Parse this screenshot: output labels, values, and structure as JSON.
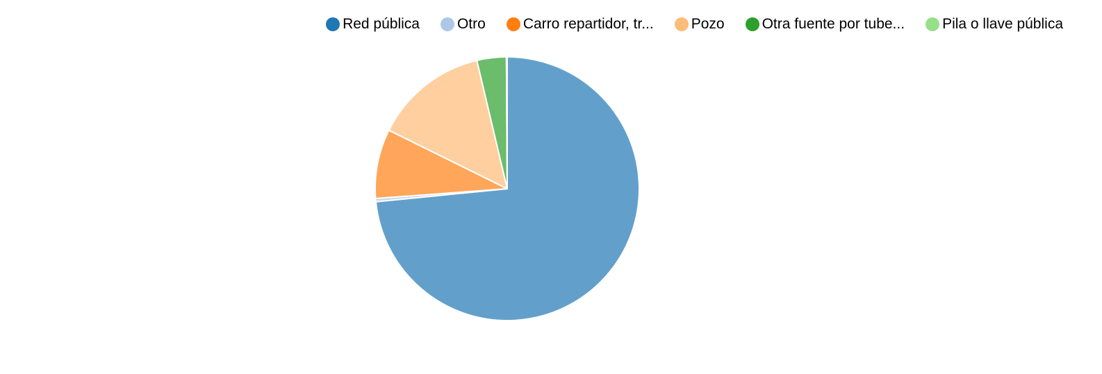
{
  "chart_data": {
    "type": "pie",
    "legend_position": "top-right",
    "slices": [
      {
        "label": "Red pública",
        "value": 73.5,
        "color": "#1f77b4",
        "fill": "#62a0cb"
      },
      {
        "label": "Otro",
        "value": 0.4,
        "color": "#aec7e8",
        "fill": "#c6d7ef"
      },
      {
        "label": "Carro repartidor, tr...",
        "value": 8.5,
        "color": "#ff7f0e",
        "fill": "#ffa65a"
      },
      {
        "label": "Pozo",
        "value": 14.0,
        "color": "#ffbb78",
        "fill": "#ffcfa0"
      },
      {
        "label": "Otra fuente por tube...",
        "value": 3.6,
        "color": "#2ca02c",
        "fill": "#6bbc6b"
      },
      {
        "label": "Pila o llave pública",
        "value": 0.1,
        "color": "#98df8a",
        "fill": "#b7e9ad"
      }
    ]
  }
}
